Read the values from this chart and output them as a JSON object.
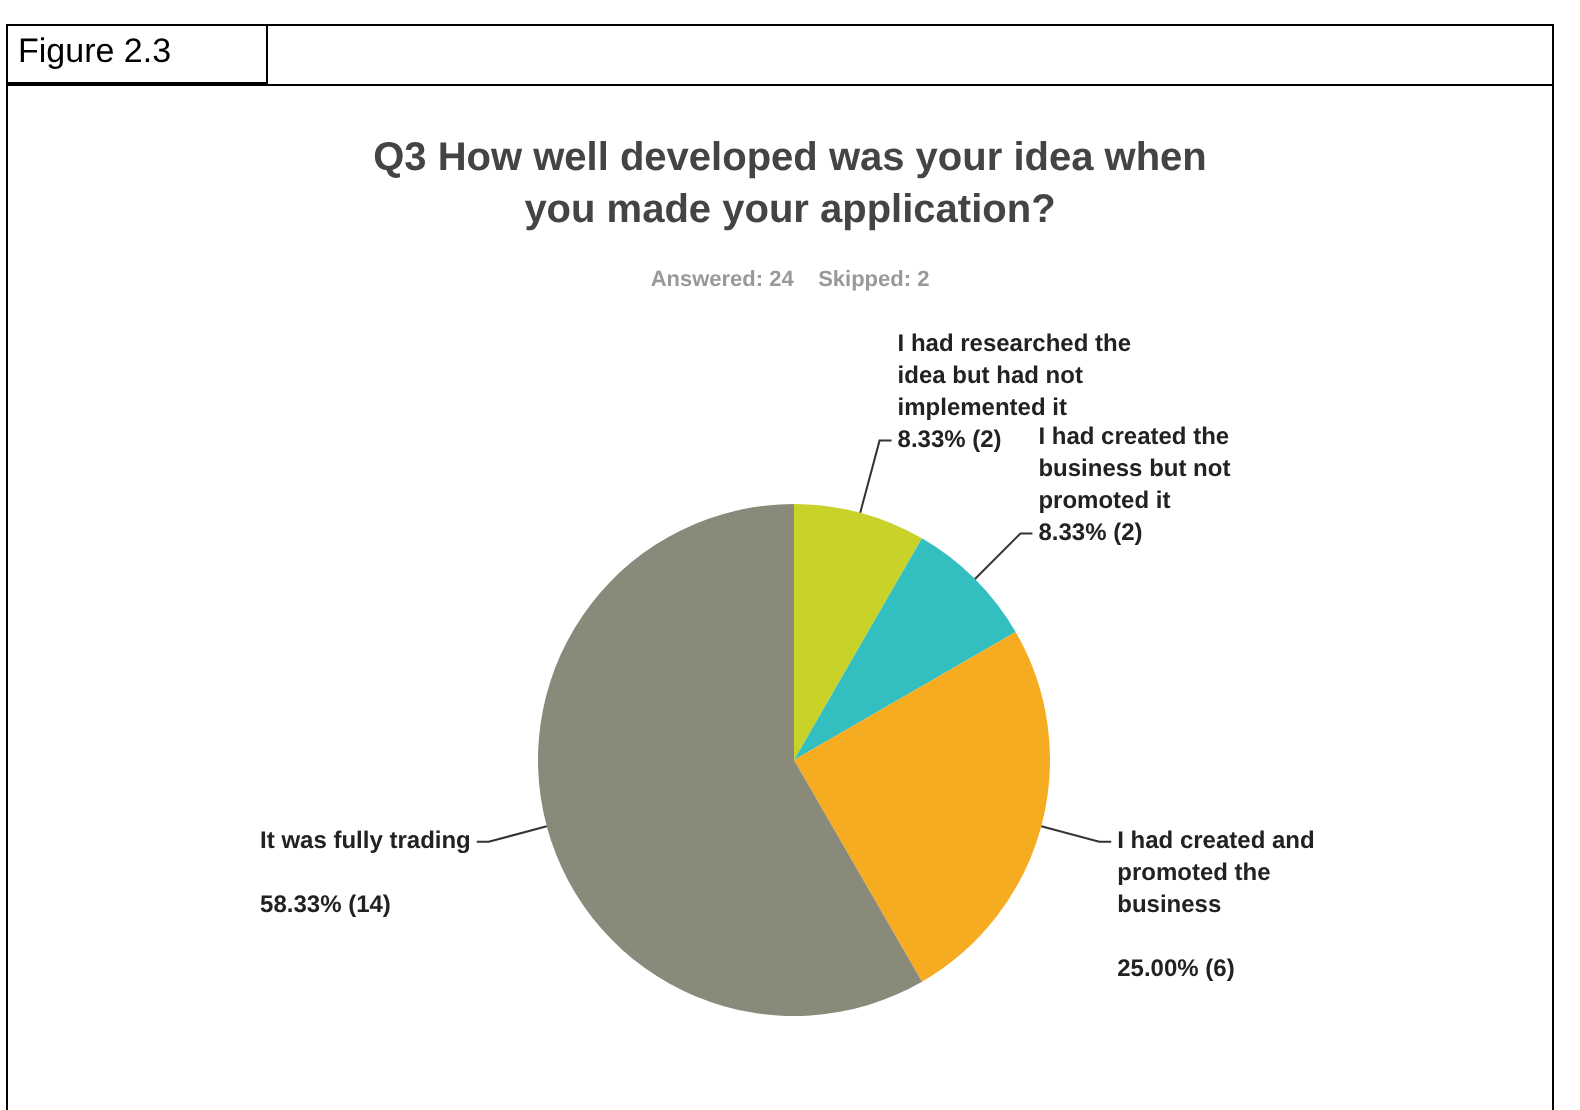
{
  "chart_data": {
    "type": "pie",
    "title": "Q3 How well developed was your idea when you made your application?",
    "subtitle": "Answered: 24    Skipped: 2",
    "annotations": [
      "Figure 2.3"
    ],
    "categories": [
      "I had researched the idea but had not implemented it",
      "I had created the business but not promoted it",
      "I had created and promoted the business",
      "It was fully trading"
    ],
    "values": [
      8.33,
      8.33,
      25.0,
      58.33
    ],
    "value_labels": [
      "8.33% (2)",
      "8.33% (2)",
      "25.00% (6)",
      "58.33% (14)"
    ],
    "colors": [
      "#c9d229",
      "#33bec0",
      "#f6ac20",
      "#8a8a7a"
    ],
    "legend": false
  }
}
